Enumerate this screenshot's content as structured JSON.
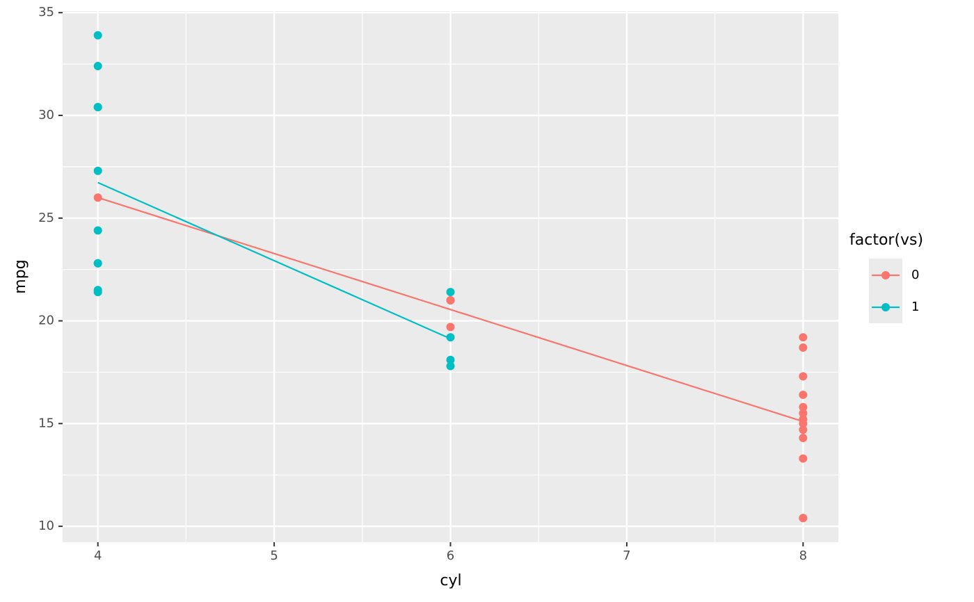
{
  "chart_data": {
    "type": "scatter",
    "xlabel": "cyl",
    "ylabel": "mpg",
    "legend_title": "factor(vs)",
    "legend": "right",
    "grid": true,
    "xlim": [
      3.8,
      8.2
    ],
    "xticks": [
      4,
      5,
      6,
      7,
      8
    ],
    "ylim": [
      9.225,
      35.075
    ],
    "yticks": [
      10,
      15,
      20,
      25,
      30,
      35
    ],
    "series": [
      {
        "name": "0",
        "color": "#F8766D",
        "x": [
          6,
          6,
          8,
          8,
          8,
          8,
          8,
          8,
          8,
          8,
          8,
          8,
          8,
          8,
          4,
          8,
          6,
          8
        ],
        "values": [
          21,
          21,
          18.7,
          14.3,
          16.4,
          17.3,
          15.2,
          10.4,
          10.4,
          14.7,
          15.5,
          15.2,
          13.3,
          19.2,
          26,
          15.8,
          19.7,
          15
        ],
        "fit": {
          "x": [
            4,
            8
          ],
          "values": [
            26.0,
            15.1
          ]
        }
      },
      {
        "name": "1",
        "color": "#00BFC4",
        "x": [
          4,
          6,
          6,
          4,
          4,
          6,
          6,
          4,
          4,
          4,
          4,
          4,
          4,
          4
        ],
        "values": [
          22.8,
          21.4,
          18.1,
          24.4,
          22.8,
          19.2,
          17.8,
          32.4,
          30.4,
          33.9,
          21.5,
          27.3,
          30.4,
          21.4
        ],
        "fit": {
          "x": [
            4,
            6
          ],
          "values": [
            26.73,
            19.13
          ]
        }
      }
    ]
  }
}
